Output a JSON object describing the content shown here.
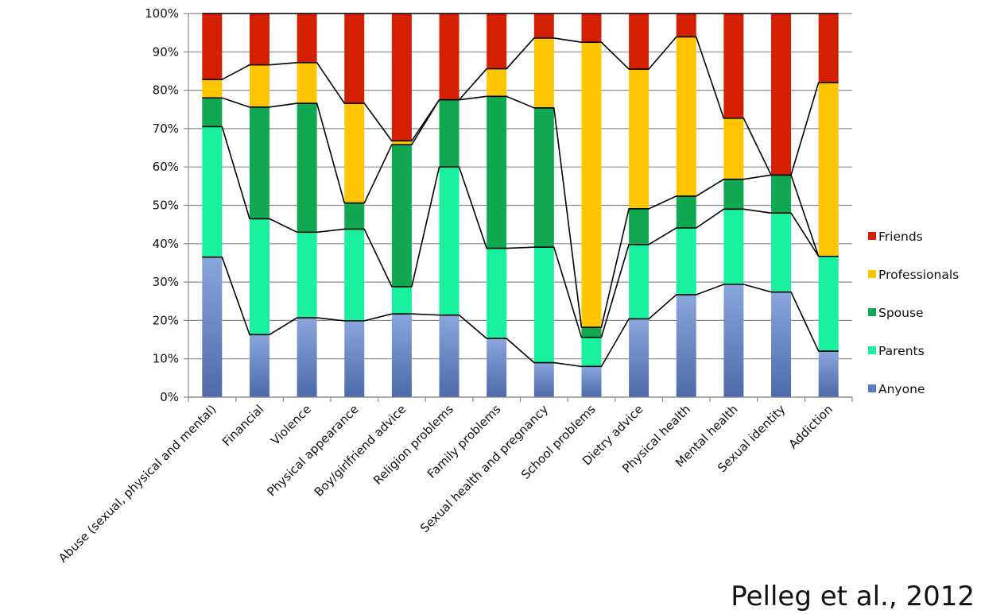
{
  "chart_data": {
    "type": "bar",
    "stacked": true,
    "normalized": true,
    "categories": [
      "Abuse (sexual, physical and mental)",
      "Financial",
      "Violence",
      "Physical appearance",
      "Boy/girlfriend advice",
      "Religion problems",
      "Family problems",
      "Sexual health and pregnancy",
      "School problems",
      "Dietry advice",
      "Physical health",
      "Mental health",
      "Sexual identity",
      "Addiction"
    ],
    "series": [
      {
        "name": "Anyone",
        "color": "#5b7bbd",
        "values": [
          36.5,
          16.3,
          20.7,
          19.9,
          21.7,
          21.4,
          15.3,
          9.0,
          8.0,
          20.4,
          26.7,
          29.4,
          27.4,
          12.0
        ]
      },
      {
        "name": "Parents",
        "color": "#19f0a0",
        "values": [
          34.0,
          30.2,
          22.3,
          23.9,
          7.1,
          38.6,
          23.5,
          30.1,
          7.6,
          19.4,
          17.4,
          19.6,
          20.6,
          24.7
        ]
      },
      {
        "name": "Spouse",
        "color": "#10a850",
        "values": [
          7.5,
          29.1,
          33.6,
          6.8,
          37.0,
          17.5,
          39.6,
          36.3,
          2.6,
          9.3,
          8.3,
          7.8,
          9.9,
          0
        ]
      },
      {
        "name": "Professionals",
        "color": "#ffc600",
        "values": [
          4.8,
          11.0,
          10.6,
          26.0,
          1.0,
          0,
          7.2,
          18.2,
          74.3,
          36.4,
          41.5,
          15.9,
          0,
          45.3
        ]
      },
      {
        "name": "Friends",
        "color": "#d42000",
        "values": [
          17.2,
          13.4,
          12.8,
          23.4,
          33.2,
          22.5,
          14.4,
          6.4,
          7.5,
          14.5,
          6.1,
          27.3,
          42.1,
          18.0
        ]
      }
    ],
    "legend_order": [
      "Friends",
      "Professionals",
      "Spouse",
      "Parents",
      "Anyone"
    ],
    "yticks": [
      "0%",
      "10%",
      "20%",
      "30%",
      "40%",
      "50%",
      "60%",
      "70%",
      "80%",
      "90%",
      "100%"
    ],
    "ylim": [
      0,
      100
    ],
    "grid": true,
    "legend_position": "right"
  },
  "citation": "Pelleg et al., 2012"
}
